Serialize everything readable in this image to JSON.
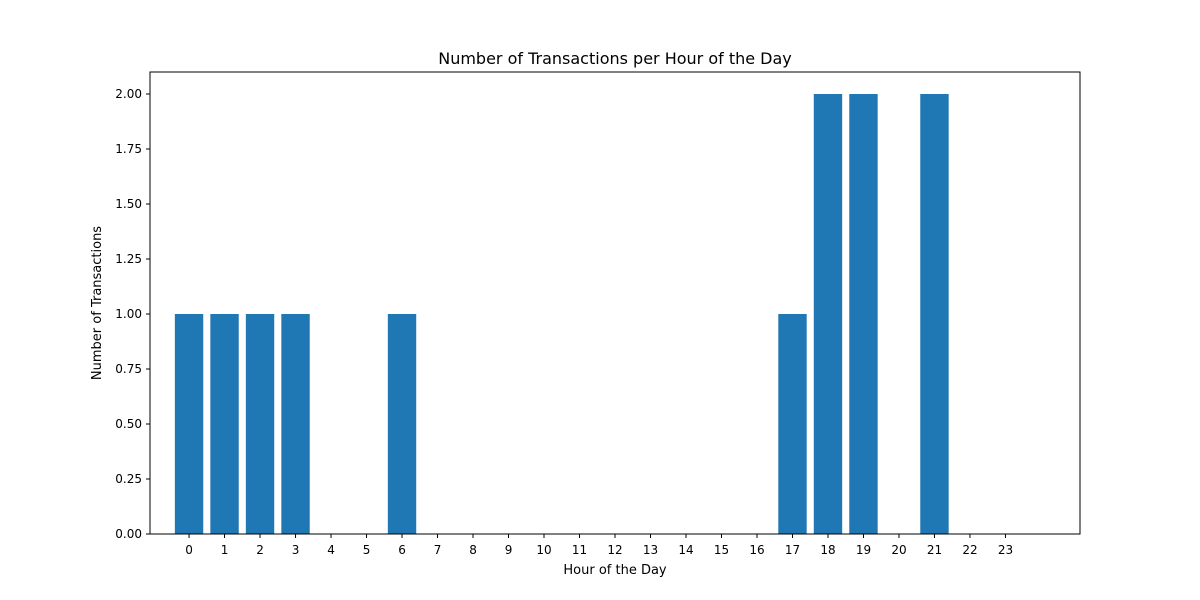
{
  "chart_data": {
    "type": "bar",
    "title": "Number of Transactions per Hour of the Day",
    "xlabel": "Hour of the Day",
    "ylabel": "Number of Transactions",
    "categories": [
      0,
      1,
      2,
      3,
      4,
      5,
      6,
      7,
      8,
      9,
      10,
      11,
      12,
      13,
      14,
      15,
      16,
      17,
      18,
      19,
      20,
      21,
      22,
      23
    ],
    "values": [
      1,
      1,
      1,
      1,
      0,
      0,
      1,
      0,
      0,
      0,
      0,
      0,
      0,
      0,
      0,
      0,
      0,
      1,
      2,
      2,
      0,
      2,
      0,
      0
    ],
    "ylim": [
      0,
      2.1
    ],
    "xlim": [
      -1.1,
      25.1
    ],
    "yticks": [
      "0.00",
      "0.25",
      "0.50",
      "0.75",
      "1.00",
      "1.25",
      "1.50",
      "1.75",
      "2.00"
    ],
    "bar_color": "#1f77b4",
    "grid": false,
    "legend": "none"
  }
}
